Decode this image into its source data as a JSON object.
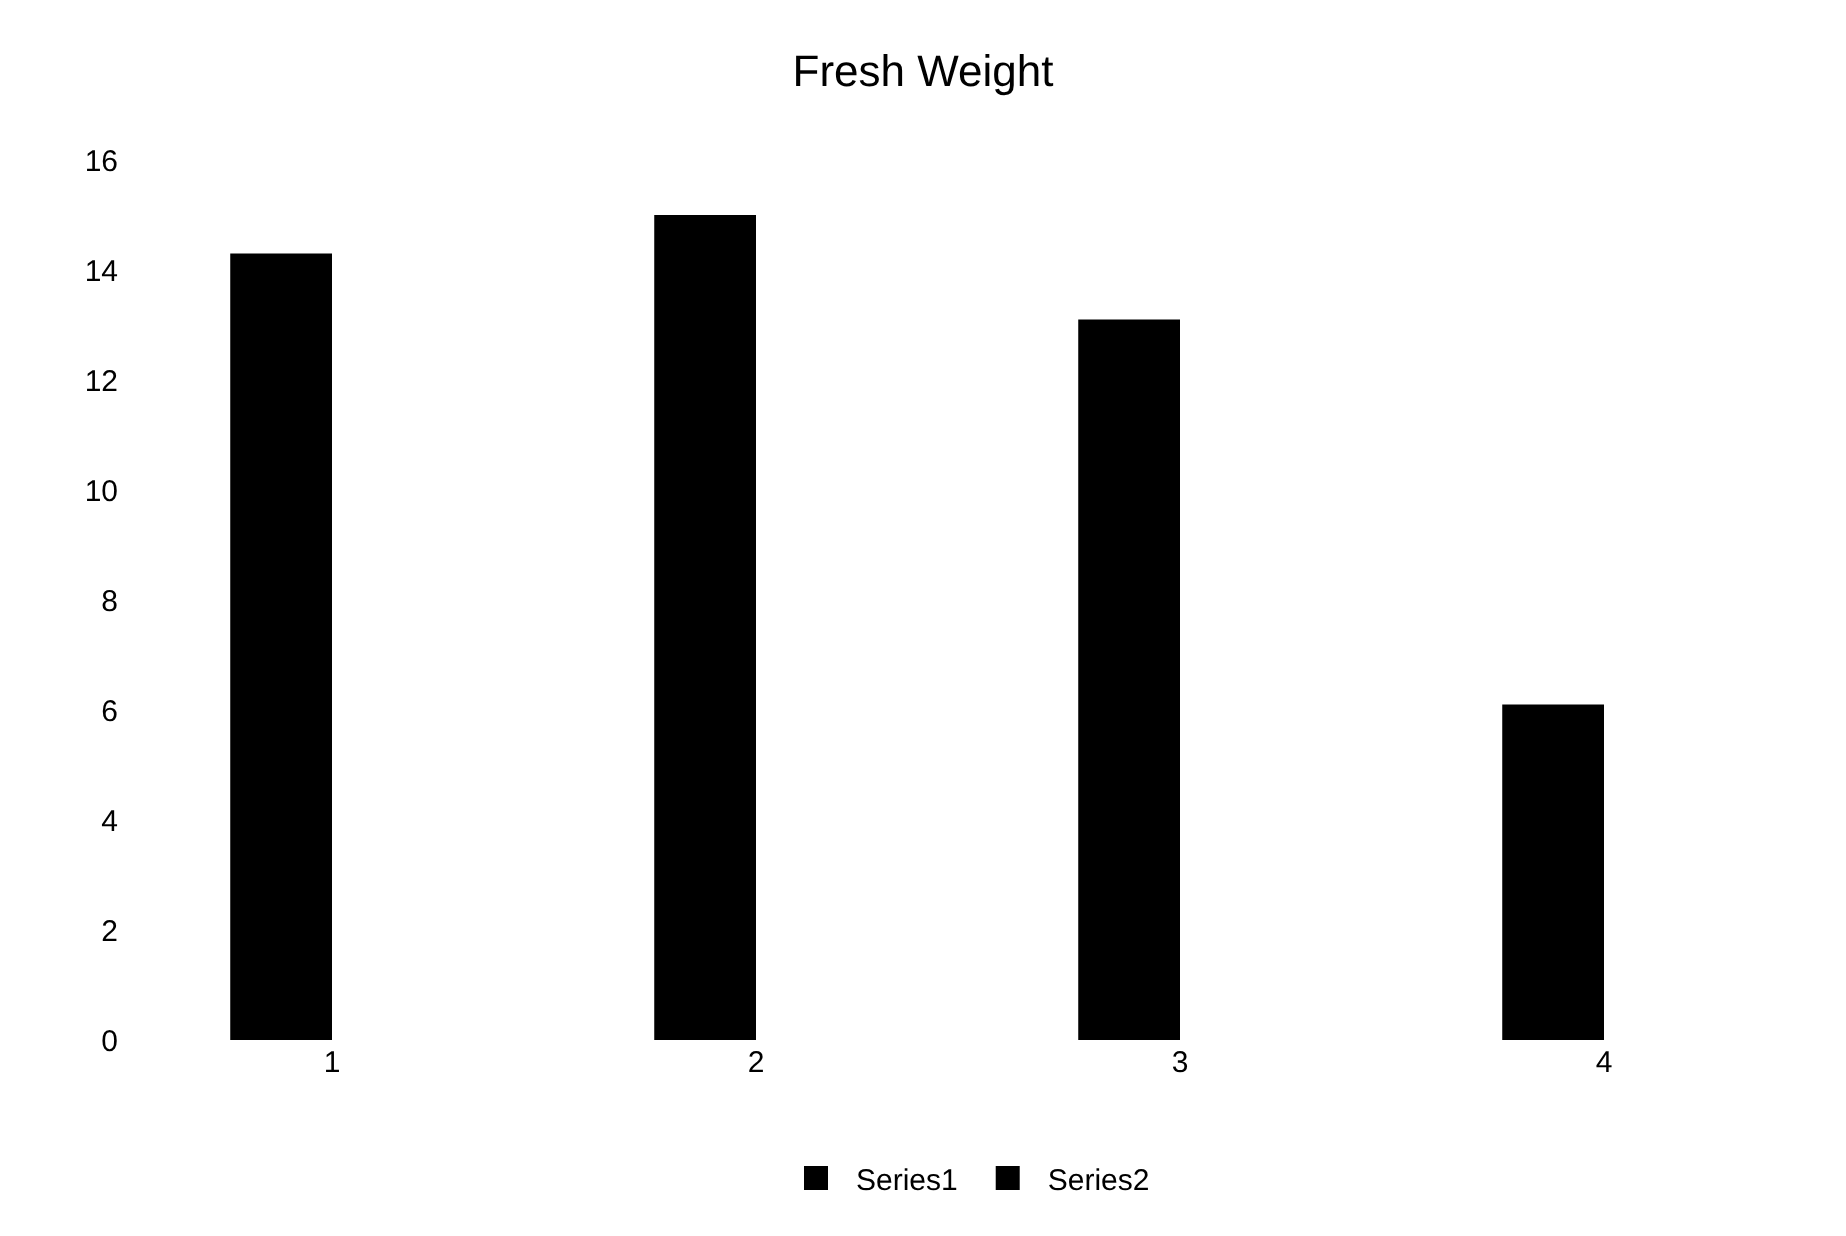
{
  "chart_data": {
    "type": "bar",
    "title": "Fresh Weight",
    "categories": [
      "1",
      "2",
      "3",
      "4"
    ],
    "series": [
      {
        "name": "Series1",
        "color": "#000000",
        "values": [
          14.3,
          15,
          13.1,
          6.1
        ]
      },
      {
        "name": "Series2",
        "color": "#000000",
        "values": [
          null,
          null,
          null,
          null
        ]
      }
    ],
    "ylim": [
      0,
      16
    ],
    "yticks": [
      0,
      2,
      4,
      6,
      8,
      10,
      12,
      14,
      16
    ],
    "grid": false,
    "legend": "bottom"
  }
}
